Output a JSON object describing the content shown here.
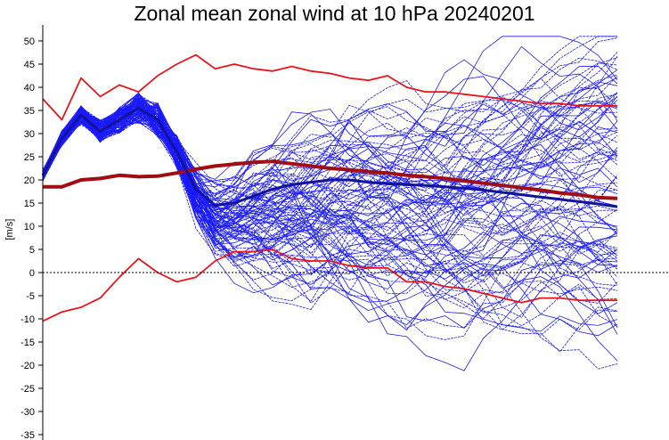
{
  "chart_data": {
    "type": "line",
    "title": "Zonal mean zonal wind at 10 hPa 20240201",
    "ylabel": "[m/s]",
    "xlabel": "",
    "xlim": [
      0,
      61
    ],
    "ylim": [
      -35,
      52
    ],
    "yticks": [
      -35,
      -30,
      -25,
      -20,
      -15,
      -10,
      -5,
      0,
      5,
      10,
      15,
      20,
      25,
      30,
      35,
      40,
      45,
      50
    ],
    "ytick_labels": [
      "-35",
      "-30",
      "-25",
      "-20",
      "-15",
      "-10",
      "-5",
      "0",
      "5",
      "10",
      "15",
      "20",
      "25",
      "30",
      "35",
      "40",
      "45",
      "50"
    ],
    "zero_line": true,
    "grid": false,
    "colors": {
      "climatology": "#e8141a",
      "climatology_mean": "#a00d12",
      "ensemble": "#1a1aff",
      "ensemble_mean": "#12129a",
      "zero_line": "#000000"
    },
    "series": [
      {
        "role": "climatology-max",
        "x": [
          0,
          2,
          4,
          6,
          8,
          10,
          12,
          14,
          16,
          18,
          20,
          22,
          24,
          26,
          28,
          30,
          32,
          34,
          36,
          38,
          40,
          42,
          44,
          46,
          48,
          50,
          52,
          54,
          56,
          58,
          60
        ],
        "values": [
          37.5,
          33.0,
          42.0,
          38.0,
          40.5,
          39.0,
          42.5,
          45.0,
          47.0,
          44.0,
          45.0,
          44.0,
          43.5,
          44.5,
          43.5,
          43.0,
          42.0,
          41.5,
          42.5,
          40.0,
          39.0,
          39.0,
          38.5,
          38.0,
          37.5,
          37.0,
          36.5,
          36.5,
          36.0,
          36.0,
          36.0
        ]
      },
      {
        "role": "climatology-mean",
        "x": [
          0,
          2,
          4,
          6,
          8,
          10,
          12,
          14,
          16,
          18,
          20,
          22,
          24,
          26,
          28,
          30,
          32,
          34,
          36,
          38,
          40,
          42,
          44,
          46,
          48,
          50,
          52,
          54,
          56,
          58,
          60
        ],
        "values": [
          18.5,
          18.5,
          20.0,
          20.3,
          21.0,
          20.7,
          20.8,
          21.5,
          22.3,
          23.0,
          23.4,
          23.8,
          24.0,
          23.5,
          23.0,
          22.5,
          22.2,
          21.8,
          21.5,
          21.0,
          20.7,
          20.3,
          19.8,
          19.3,
          18.8,
          18.3,
          17.8,
          17.2,
          16.8,
          16.2,
          16.0
        ]
      },
      {
        "role": "climatology-min",
        "x": [
          0,
          2,
          4,
          6,
          8,
          10,
          12,
          14,
          16,
          18,
          20,
          22,
          24,
          26,
          28,
          30,
          32,
          34,
          36,
          38,
          40,
          42,
          44,
          46,
          48,
          50,
          52,
          54,
          56,
          58,
          60
        ],
        "values": [
          -10.5,
          -8.5,
          -7.5,
          -5.5,
          -1.0,
          3.0,
          0.0,
          -2.0,
          -1.0,
          2.5,
          4.5,
          4.5,
          5.0,
          3.0,
          2.5,
          2.5,
          1.5,
          1.0,
          1.0,
          -2.0,
          -2.0,
          -3.0,
          -3.5,
          -4.5,
          -5.5,
          -6.5,
          -5.5,
          -5.5,
          -6.0,
          -6.0,
          -6.0
        ]
      },
      {
        "role": "ensemble-mean",
        "x": [
          0,
          2,
          4,
          6,
          8,
          10,
          12,
          14,
          16,
          18,
          20,
          22,
          24,
          26,
          28,
          30,
          32,
          34,
          36,
          38,
          40,
          42,
          44,
          46,
          48,
          50,
          52,
          54,
          56,
          58,
          60
        ],
        "values": [
          21.0,
          29.0,
          34.0,
          30.5,
          33.0,
          35.5,
          33.0,
          26.0,
          18.0,
          14.5,
          15.0,
          16.5,
          18.0,
          19.0,
          19.5,
          20.0,
          20.0,
          19.5,
          19.2,
          19.0,
          18.8,
          18.5,
          18.2,
          17.8,
          17.3,
          16.8,
          16.3,
          15.8,
          15.3,
          14.8,
          14.2
        ]
      }
    ],
    "ensemble_band": {
      "early_spread": 2.5,
      "final_range": [
        -14,
        45
      ]
    }
  }
}
